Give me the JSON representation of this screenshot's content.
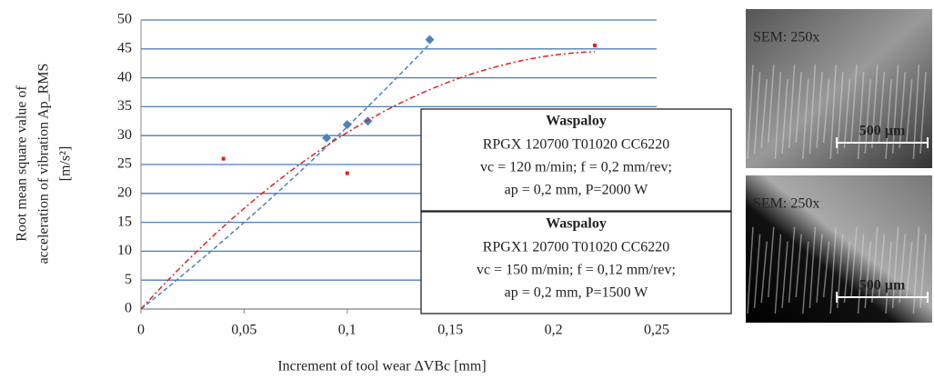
{
  "chart_data": {
    "type": "scatter",
    "x_label": "Increment of tool wear ΔVBc [mm]",
    "y_label": [
      "Root mean square value of",
      "acceleration of vibration  Ap_RMS",
      "[m/s²]"
    ],
    "xlim": [
      0,
      0.25
    ],
    "ylim": [
      0,
      50
    ],
    "xticks": [
      0,
      {
        "value": 0.05,
        "label": "0,05"
      },
      {
        "value": 0.1,
        "label": "0,1"
      },
      {
        "value": 0.15,
        "label": "0,15"
      },
      {
        "value": 0.2,
        "label": "0,2"
      },
      {
        "value": 0.25,
        "label": "0,25"
      }
    ],
    "yticks": [
      0,
      5,
      10,
      15,
      20,
      25,
      30,
      35,
      40,
      45,
      50
    ],
    "grid": true,
    "series": [
      {
        "name": "Waspaloy",
        "color": "#4f81bd",
        "marker": "diamond",
        "description": [
          "RPGX 120700 T01020 CC6220",
          "vc = 120 m/min; f = 0,2 mm/rev;",
          "ap = 0,2 mm, P=2000 W"
        ],
        "x": [
          0.09,
          0.1,
          0.11,
          0.14
        ],
        "values": [
          29.6,
          31.9,
          32.5,
          46.6
        ]
      },
      {
        "name": "Waspaloy",
        "color": "#e02020",
        "marker": "square",
        "description": [
          "RPGX1 20700 T01020 CC6220",
          "vc = 150 m/min; f = 0,12 mm/rev;",
          "ap = 0,2 mm, P=1500 W"
        ],
        "x": [
          0.04,
          0.1,
          0.22
        ],
        "values": [
          26,
          23.5,
          45.6
        ]
      }
    ]
  },
  "images": [
    {
      "caption": "SEM: 250x",
      "scale": "500 µm"
    },
    {
      "caption": "SEM: 250x",
      "scale": "500 µm"
    }
  ]
}
